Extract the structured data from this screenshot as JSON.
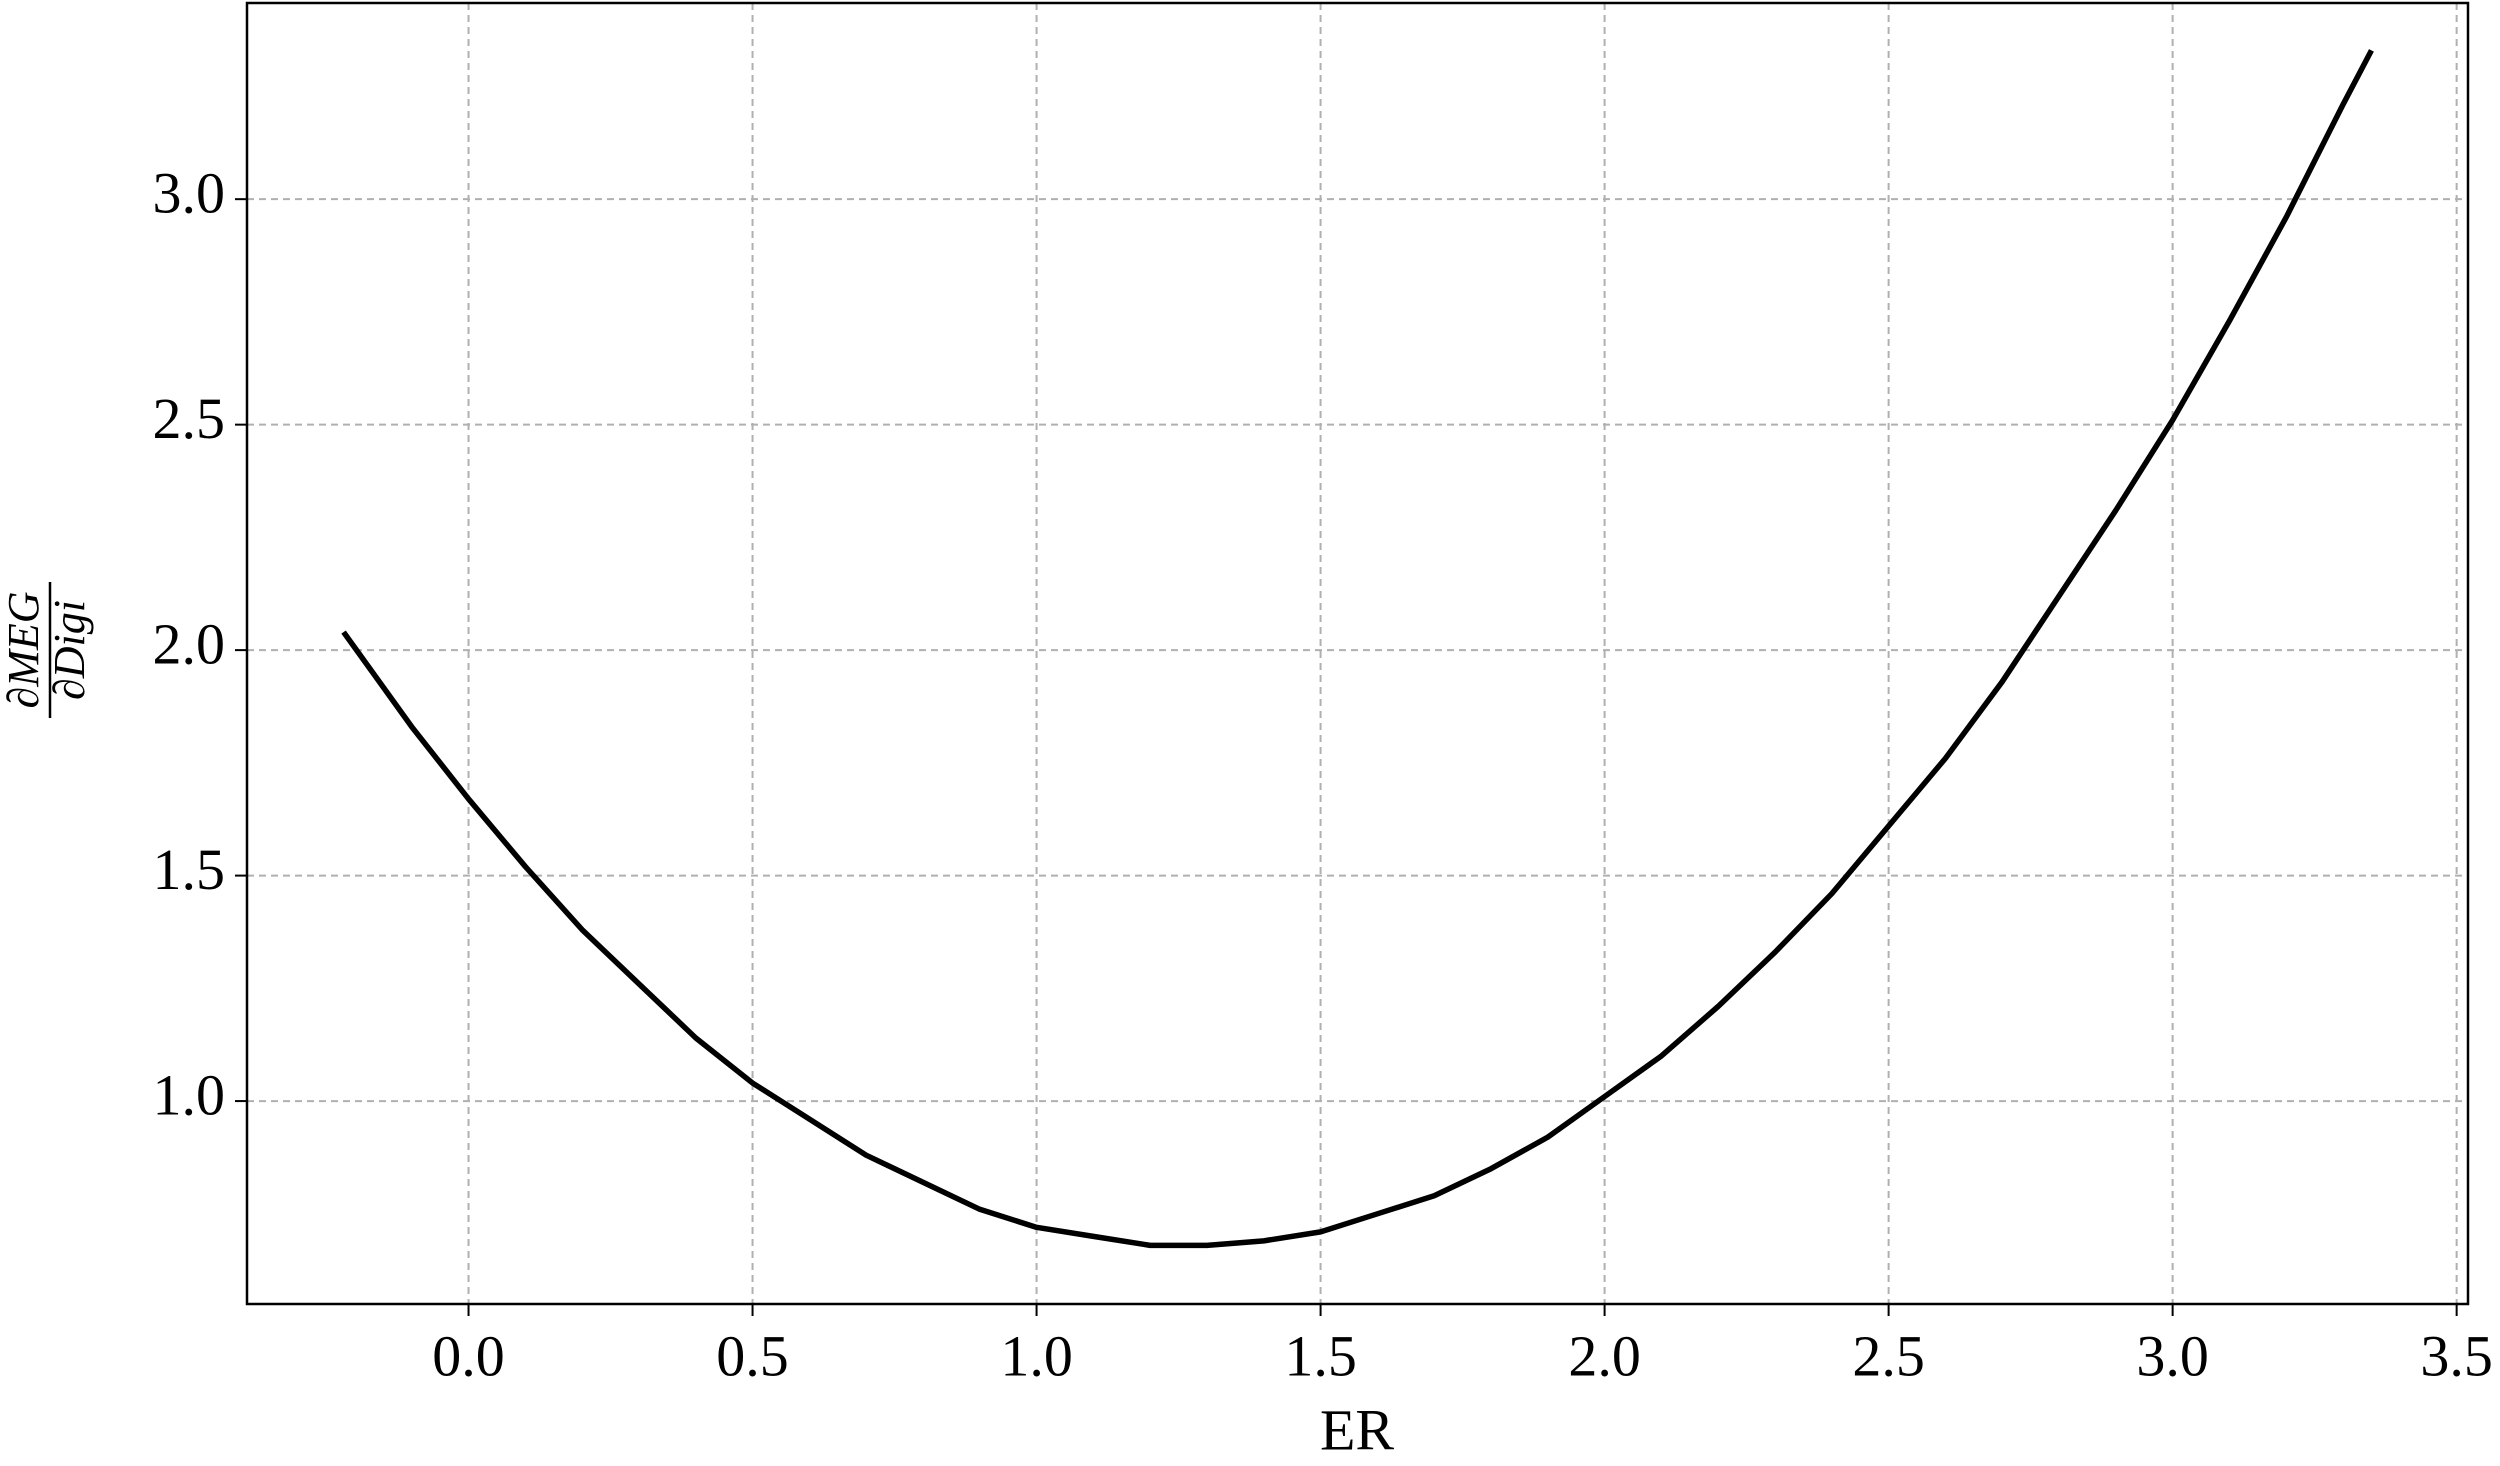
{
  "chart_data": {
    "type": "line",
    "xlabel": "ER",
    "ylabel": {
      "numerator": "∂MEG",
      "denominator": "∂Digi"
    },
    "x": [
      -0.22,
      -0.1,
      0.0,
      0.1,
      0.2,
      0.3,
      0.4,
      0.5,
      0.6,
      0.7,
      0.8,
      0.9,
      1.0,
      1.1,
      1.2,
      1.3,
      1.4,
      1.5,
      1.6,
      1.7,
      1.8,
      1.9,
      2.0,
      2.1,
      2.2,
      2.3,
      2.4,
      2.5,
      2.6,
      2.7,
      2.8,
      2.9,
      3.0,
      3.1,
      3.2,
      3.3,
      3.35
    ],
    "series": [
      {
        "color": "#000000",
        "values": [
          2.04,
          1.83,
          1.67,
          1.52,
          1.38,
          1.26,
          1.14,
          1.04,
          0.96,
          0.88,
          0.82,
          0.76,
          0.72,
          0.7,
          0.68,
          0.68,
          0.69,
          0.71,
          0.75,
          0.79,
          0.85,
          0.92,
          1.01,
          1.1,
          1.21,
          1.33,
          1.46,
          1.61,
          1.76,
          1.93,
          2.12,
          2.31,
          2.51,
          2.73,
          2.96,
          3.21,
          3.33
        ]
      }
    ],
    "xlim": [
      -0.39,
      3.52
    ],
    "ylim": [
      0.55,
      3.435
    ],
    "xticks": [
      {
        "value": 0,
        "label": "0.0"
      },
      0.5,
      {
        "value": 1,
        "label": "1.0"
      },
      1.5,
      {
        "value": 2,
        "label": "2.0"
      },
      2.5,
      {
        "value": 3,
        "label": "3.0"
      },
      3.5
    ],
    "yticks": [
      {
        "value": 1,
        "label": "1.0"
      },
      1.5,
      {
        "value": 2,
        "label": "2.0"
      },
      2.5,
      {
        "value": 3,
        "label": "3.0"
      }
    ],
    "grid": true
  }
}
